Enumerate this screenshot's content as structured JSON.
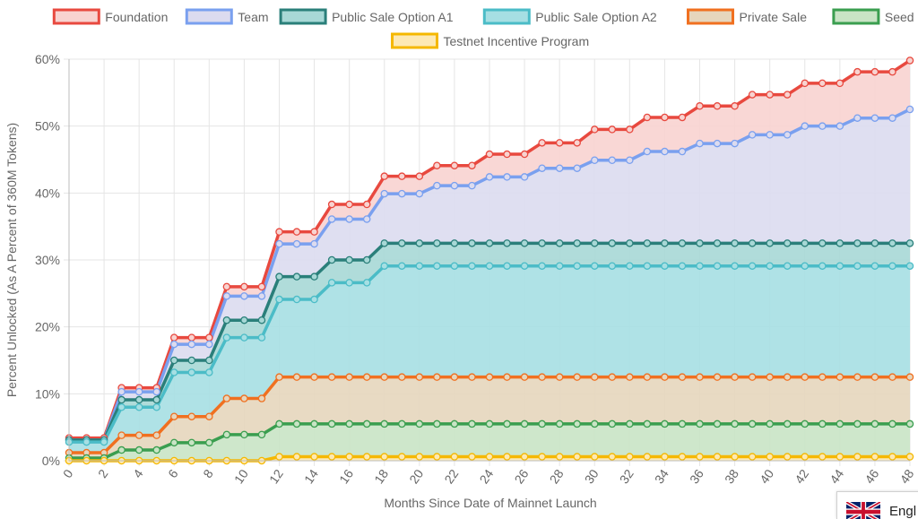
{
  "chart_data": {
    "type": "area",
    "xlabel": "Months Since Date of Mainnet Launch",
    "ylabel": "Percent Unlocked (As A Percent of 360M Tokens)",
    "ylim": [
      0,
      60
    ],
    "y_ticks": [
      "0%",
      "10%",
      "20%",
      "30%",
      "40%",
      "50%",
      "60%"
    ],
    "x_ticks": [
      "0",
      "2",
      "4",
      "6",
      "8",
      "10",
      "12",
      "14",
      "16",
      "18",
      "20",
      "22",
      "24",
      "26",
      "28",
      "30",
      "32",
      "34",
      "36",
      "38",
      "40",
      "42",
      "44",
      "46",
      "48"
    ],
    "grid": true,
    "legend_position": "top",
    "stacked": true,
    "x": [
      0,
      1,
      2,
      3,
      4,
      5,
      6,
      7,
      8,
      9,
      10,
      11,
      12,
      13,
      14,
      15,
      16,
      17,
      18,
      19,
      20,
      21,
      22,
      23,
      24,
      25,
      26,
      27,
      28,
      29,
      30,
      31,
      32,
      33,
      34,
      35,
      36,
      37,
      38,
      39,
      40,
      41,
      42,
      43,
      44,
      45,
      46,
      47,
      48
    ],
    "series": [
      {
        "name": "Testnet Incentive Program",
        "color": "#f5b800",
        "fill": "#fde9b3",
        "values": [
          0,
          0,
          0,
          0,
          0,
          0,
          0,
          0,
          0,
          0,
          0,
          0,
          0.6,
          0.6,
          0.6,
          0.6,
          0.6,
          0.6,
          0.6,
          0.6,
          0.6,
          0.6,
          0.6,
          0.6,
          0.6,
          0.6,
          0.6,
          0.6,
          0.6,
          0.6,
          0.6,
          0.6,
          0.6,
          0.6,
          0.6,
          0.6,
          0.6,
          0.6,
          0.6,
          0.6,
          0.6,
          0.6,
          0.6,
          0.6,
          0.6,
          0.6,
          0.6,
          0.6,
          0.6
        ]
      },
      {
        "name": "Seed Sale",
        "color": "#3a9e4f",
        "fill": "#c9e4c5",
        "values": [
          0.4,
          0.4,
          0.4,
          1.6,
          1.6,
          1.6,
          2.7,
          2.7,
          2.7,
          3.9,
          3.9,
          3.9,
          4.9,
          4.9,
          4.9,
          4.9,
          4.9,
          4.9,
          4.9,
          4.9,
          4.9,
          4.9,
          4.9,
          4.9,
          4.9,
          4.9,
          4.9,
          4.9,
          4.9,
          4.9,
          4.9,
          4.9,
          4.9,
          4.9,
          4.9,
          4.9,
          4.9,
          4.9,
          4.9,
          4.9,
          4.9,
          4.9,
          4.9,
          4.9,
          4.9,
          4.9,
          4.9,
          4.9,
          4.9
        ]
      },
      {
        "name": "Private Sale",
        "color": "#f07020",
        "fill": "#e6d6bd",
        "values": [
          0.8,
          0.8,
          0.8,
          2.2,
          2.2,
          2.2,
          3.9,
          3.9,
          3.9,
          5.4,
          5.4,
          5.4,
          7.0,
          7.0,
          7.0,
          7.0,
          7.0,
          7.0,
          7.0,
          7.0,
          7.0,
          7.0,
          7.0,
          7.0,
          7.0,
          7.0,
          7.0,
          7.0,
          7.0,
          7.0,
          7.0,
          7.0,
          7.0,
          7.0,
          7.0,
          7.0,
          7.0,
          7.0,
          7.0,
          7.0,
          7.0,
          7.0,
          7.0,
          7.0,
          7.0,
          7.0,
          7.0,
          7.0,
          7.0
        ]
      },
      {
        "name": "Public Sale Option A2",
        "color": "#4bbcc7",
        "fill": "#a6dfe3",
        "values": [
          1.6,
          1.6,
          1.6,
          4.2,
          4.2,
          4.2,
          6.6,
          6.6,
          6.6,
          9.1,
          9.1,
          9.1,
          11.6,
          11.6,
          11.6,
          14.1,
          14.1,
          14.1,
          16.6,
          16.6,
          16.6,
          16.6,
          16.6,
          16.6,
          16.6,
          16.6,
          16.6,
          16.6,
          16.6,
          16.6,
          16.6,
          16.6,
          16.6,
          16.6,
          16.6,
          16.6,
          16.6,
          16.6,
          16.6,
          16.6,
          16.6,
          16.6,
          16.6,
          16.6,
          16.6,
          16.6,
          16.6,
          16.6,
          16.6
        ]
      },
      {
        "name": "Public Sale Option A1",
        "color": "#2a7f7a",
        "fill": "#a7d8d6",
        "values": [
          0.3,
          0.3,
          0.3,
          1.1,
          1.1,
          1.1,
          1.8,
          1.8,
          1.8,
          2.6,
          2.6,
          2.6,
          3.4,
          3.4,
          3.4,
          3.4,
          3.4,
          3.4,
          3.4,
          3.4,
          3.4,
          3.4,
          3.4,
          3.4,
          3.4,
          3.4,
          3.4,
          3.4,
          3.4,
          3.4,
          3.4,
          3.4,
          3.4,
          3.4,
          3.4,
          3.4,
          3.4,
          3.4,
          3.4,
          3.4,
          3.4,
          3.4,
          3.4,
          3.4,
          3.4,
          3.4,
          3.4,
          3.4,
          3.4
        ]
      },
      {
        "name": "Team",
        "color": "#7aa0ef",
        "fill": "#dcdbef",
        "values": [
          0,
          0,
          0,
          1.2,
          1.2,
          1.2,
          2.4,
          2.4,
          2.4,
          3.6,
          3.6,
          3.6,
          4.9,
          4.9,
          4.9,
          6.1,
          6.1,
          6.1,
          7.4,
          7.4,
          7.4,
          8.6,
          8.6,
          8.6,
          9.9,
          9.9,
          9.9,
          11.2,
          11.2,
          11.2,
          12.4,
          12.4,
          12.4,
          13.7,
          13.7,
          13.7,
          14.9,
          14.9,
          14.9,
          16.2,
          16.2,
          16.2,
          17.5,
          17.5,
          17.5,
          18.7,
          18.7,
          18.7,
          20.0
        ]
      },
      {
        "name": "Foundation",
        "color": "#e8493f",
        "fill": "#f8d3d0",
        "values": [
          0.3,
          0.3,
          0.3,
          0.6,
          0.6,
          0.6,
          1.0,
          1.0,
          1.0,
          1.4,
          1.4,
          1.4,
          1.8,
          1.8,
          1.8,
          2.2,
          2.2,
          2.2,
          2.6,
          2.6,
          2.6,
          3.0,
          3.0,
          3.0,
          3.4,
          3.4,
          3.4,
          3.8,
          3.8,
          3.8,
          4.6,
          4.6,
          4.6,
          5.1,
          5.1,
          5.1,
          5.6,
          5.6,
          5.6,
          6.0,
          6.0,
          6.0,
          6.4,
          6.4,
          6.4,
          6.9,
          6.9,
          6.9,
          7.3
        ]
      }
    ],
    "legend_order": [
      "Foundation",
      "Team",
      "Public Sale Option A1",
      "Public Sale Option A2",
      "Private Sale",
      "Seed Sale",
      "Testnet Incentive Program"
    ]
  },
  "language_badge": {
    "text": "Engl"
  }
}
